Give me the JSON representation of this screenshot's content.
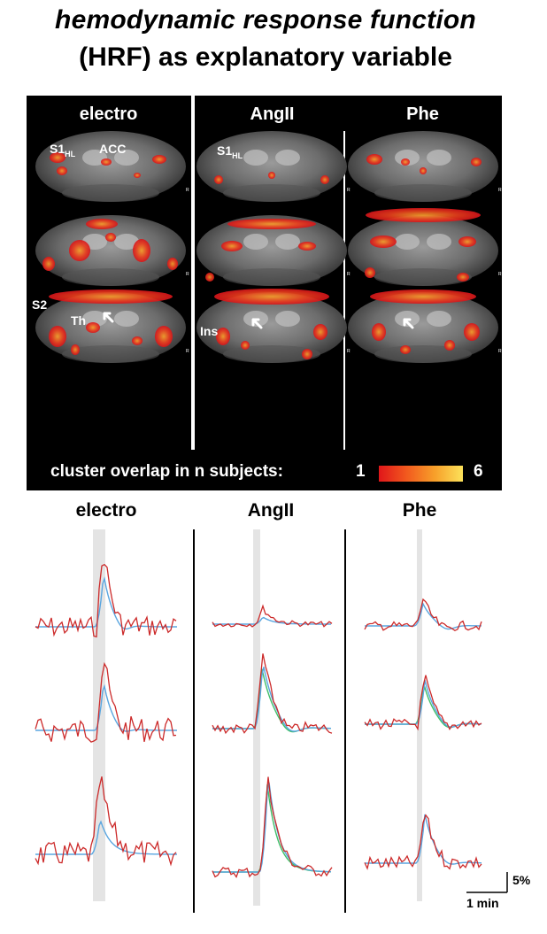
{
  "title": {
    "line1": "hemodynamic response function",
    "line2": "(HRF) as explanatory variable"
  },
  "conditions": [
    "electro",
    "AngII",
    "Phe"
  ],
  "mri": {
    "labels": {
      "s1hl": "S1",
      "s1hl_sub": "HL",
      "acc": "ACC",
      "s2": "S2",
      "th": "Th",
      "ins": "Ins",
      "r": "R"
    },
    "colorbar": {
      "label": "cluster overlap in n subjects:",
      "min": "1",
      "max": "6",
      "colors": [
        "#e0161a",
        "#f25a1e",
        "#f7a02a",
        "#fce25a"
      ]
    }
  },
  "traces": {
    "scalebar_y": "5%",
    "scalebar_x": "1 min",
    "colors": {
      "measured": "#cc2a2a",
      "hrf": "#5aa6e0",
      "hrf_alt": "#3fbf6a",
      "stim": "#e4e4e4"
    }
  }
}
